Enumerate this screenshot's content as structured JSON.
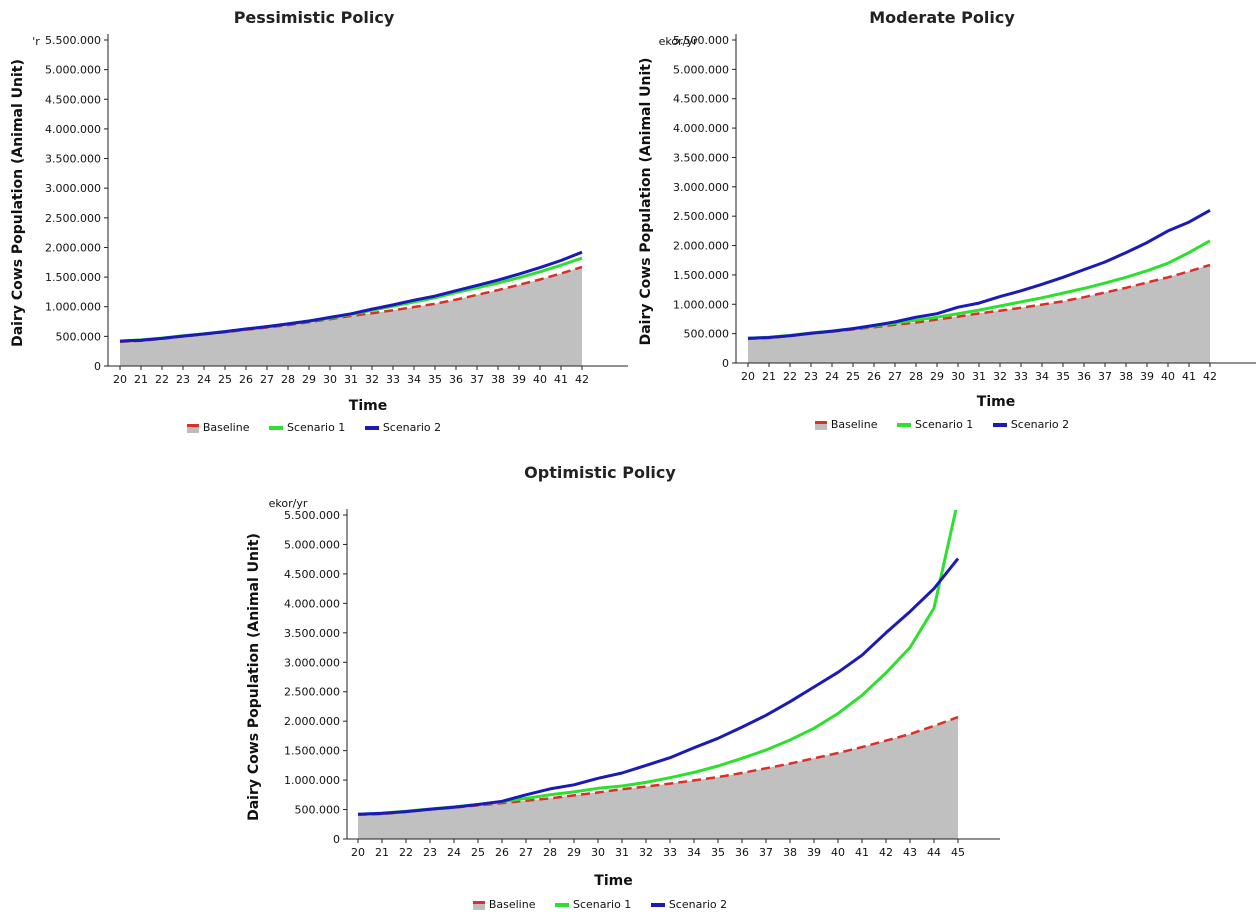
{
  "chart_data": [
    {
      "type": "line",
      "title": "Pessimistic Policy",
      "unit": "'r",
      "xlabel": "Time",
      "ylabel": "Dairy Cows Population (Animal Unit)",
      "ylim": [
        0,
        5500000
      ],
      "yticks": [
        "0",
        "500.000",
        "1.000.000",
        "1.500.000",
        "2.000.000",
        "2.500.000",
        "3.000.000",
        "3.500.000",
        "4.000.000",
        "4.500.000",
        "5.000.000",
        "5.500.000"
      ],
      "categories": [
        "20",
        "21",
        "22",
        "23",
        "24",
        "25",
        "26",
        "27",
        "28",
        "29",
        "30",
        "31",
        "32",
        "33",
        "34",
        "35",
        "36",
        "37",
        "38",
        "39",
        "40",
        "41",
        "42"
      ],
      "series": [
        {
          "name": "Baseline",
          "color": "#d9302a",
          "area_color": "#c0c0c0",
          "style": "dashed-area",
          "values": [
            410000,
            425000,
            460000,
            500000,
            535000,
            570000,
            610000,
            650000,
            690000,
            740000,
            790000,
            845000,
            890000,
            940000,
            995000,
            1050000,
            1120000,
            1200000,
            1280000,
            1370000,
            1460000,
            1560000,
            1670000
          ]
        },
        {
          "name": "Scenario 1",
          "color": "#2ee02e",
          "style": "solid",
          "values": [
            420000,
            440000,
            470000,
            510000,
            545000,
            580000,
            625000,
            665000,
            710000,
            760000,
            810000,
            870000,
            940000,
            1010000,
            1080000,
            1150000,
            1240000,
            1320000,
            1400000,
            1490000,
            1590000,
            1700000,
            1820000
          ]
        },
        {
          "name": "Scenario 2",
          "color": "#1a1ab8",
          "style": "solid",
          "values": [
            420000,
            435000,
            465000,
            505000,
            540000,
            580000,
            625000,
            665000,
            710000,
            760000,
            820000,
            880000,
            960000,
            1030000,
            1110000,
            1180000,
            1270000,
            1360000,
            1450000,
            1550000,
            1660000,
            1780000,
            1920000
          ]
        }
      ]
    },
    {
      "type": "line",
      "title": "Moderate Policy",
      "unit": "ekor/yr",
      "xlabel": "Time",
      "ylabel": "Dairy Cows Population (Animal Unit)",
      "ylim": [
        0,
        5500000
      ],
      "yticks": [
        "0",
        "500.000",
        "1.000.000",
        "1.500.000",
        "2.000.000",
        "2.500.000",
        "3.000.000",
        "3.500.000",
        "4.000.000",
        "4.500.000",
        "5.000.000",
        "5.500.000"
      ],
      "categories": [
        "20",
        "21",
        "22",
        "23",
        "24",
        "25",
        "26",
        "27",
        "28",
        "29",
        "30",
        "31",
        "32",
        "33",
        "34",
        "35",
        "36",
        "37",
        "38",
        "39",
        "40",
        "41",
        "42"
      ],
      "series": [
        {
          "name": "Baseline",
          "color": "#d9302a",
          "area_color": "#c0c0c0",
          "style": "dashed-area",
          "values": [
            410000,
            425000,
            460000,
            500000,
            535000,
            570000,
            610000,
            650000,
            690000,
            740000,
            790000,
            845000,
            890000,
            940000,
            995000,
            1050000,
            1120000,
            1200000,
            1280000,
            1370000,
            1460000,
            1560000,
            1670000
          ]
        },
        {
          "name": "Scenario 1",
          "color": "#2ee02e",
          "style": "solid",
          "values": [
            420000,
            440000,
            470000,
            510000,
            545000,
            585000,
            630000,
            680000,
            730000,
            780000,
            840000,
            900000,
            970000,
            1040000,
            1110000,
            1190000,
            1270000,
            1360000,
            1460000,
            1570000,
            1700000,
            1880000,
            2080000
          ]
        },
        {
          "name": "Scenario 2",
          "color": "#1a1ab8",
          "style": "solid",
          "values": [
            420000,
            435000,
            465000,
            505000,
            540000,
            585000,
            640000,
            700000,
            780000,
            840000,
            950000,
            1020000,
            1130000,
            1230000,
            1340000,
            1460000,
            1590000,
            1720000,
            1880000,
            2050000,
            2250000,
            2400000,
            2600000
          ]
        }
      ]
    },
    {
      "type": "line",
      "title": "Optimistic Policy",
      "unit": "ekor/yr",
      "xlabel": "Time",
      "ylabel": "Dairy Cows Population (Animal Unit)",
      "ylim": [
        0,
        5500000
      ],
      "yticks": [
        "0",
        "500.000",
        "1.000.000",
        "1.500.000",
        "2.000.000",
        "2.500.000",
        "3.000.000",
        "3.500.000",
        "4.000.000",
        "4.500.000",
        "5.000.000",
        "5.500.000"
      ],
      "categories": [
        "20",
        "21",
        "22",
        "23",
        "24",
        "25",
        "26",
        "27",
        "28",
        "29",
        "30",
        "31",
        "32",
        "33",
        "34",
        "35",
        "36",
        "37",
        "38",
        "39",
        "40",
        "41",
        "42",
        "43",
        "44",
        "45"
      ],
      "series": [
        {
          "name": "Baseline",
          "color": "#d9302a",
          "area_color": "#c0c0c0",
          "style": "dashed-area",
          "values": [
            410000,
            425000,
            460000,
            500000,
            535000,
            570000,
            610000,
            650000,
            690000,
            740000,
            790000,
            845000,
            890000,
            940000,
            995000,
            1050000,
            1120000,
            1200000,
            1280000,
            1370000,
            1460000,
            1560000,
            1670000,
            1780000,
            1920000,
            2070000
          ]
        },
        {
          "name": "Scenario 1",
          "color": "#2ee02e",
          "style": "solid",
          "values": [
            420000,
            440000,
            470000,
            510000,
            545000,
            585000,
            635000,
            690000,
            750000,
            800000,
            860000,
            900000,
            960000,
            1040000,
            1130000,
            1240000,
            1370000,
            1510000,
            1680000,
            1880000,
            2130000,
            2440000,
            2820000,
            3250000,
            3920000,
            5750000
          ]
        },
        {
          "name": "Scenario 2",
          "color": "#1a1ab8",
          "style": "solid",
          "values": [
            420000,
            435000,
            465000,
            505000,
            540000,
            585000,
            640000,
            750000,
            850000,
            920000,
            1030000,
            1120000,
            1250000,
            1380000,
            1550000,
            1710000,
            1900000,
            2100000,
            2330000,
            2580000,
            2830000,
            3120000,
            3500000,
            3860000,
            4250000,
            4760000
          ]
        }
      ]
    }
  ]
}
